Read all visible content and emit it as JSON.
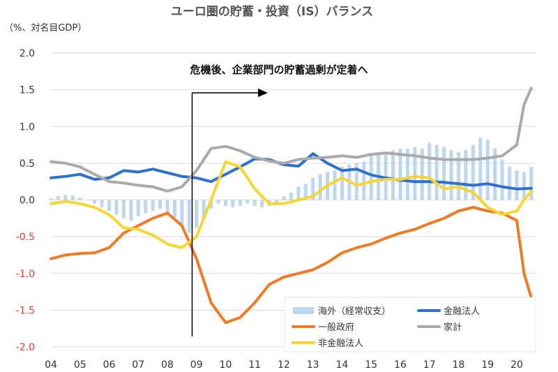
{
  "chart_data": {
    "type": "line",
    "title": "ユーロ圏の貯蓄・投資（IS）バランス",
    "ylabel": "（%、対名目GDP）",
    "ylim": [
      -2.0,
      2.0
    ],
    "yticks": [
      -2.0,
      -1.5,
      -1.0,
      -0.5,
      0.0,
      0.5,
      1.0,
      1.5,
      2.0
    ],
    "ytick_labels": [
      "-2.0",
      "-1.5",
      "-1.0",
      "-0.5",
      "0.0",
      "0.5",
      "1.0",
      "1.5",
      "2.0"
    ],
    "xtick_labels": [
      "04",
      "05",
      "06",
      "07",
      "08",
      "09",
      "10",
      "11",
      "12",
      "13",
      "14",
      "15",
      "16",
      "17",
      "18",
      "19",
      "20"
    ],
    "xlim": [
      2004.0,
      2020.65
    ],
    "grid": true,
    "annotation": {
      "text": "危機後、企業部門の貯蓄過剰が定着へ",
      "event_year": 2008.85
    },
    "legend_position": "bottom-right",
    "series": [
      {
        "name": "海外（経常収支）",
        "kind": "bar",
        "color": "#bdd7ee",
        "x": [
          2004.0,
          2004.25,
          2004.5,
          2004.75,
          2005.0,
          2005.25,
          2005.5,
          2005.75,
          2006.0,
          2006.25,
          2006.5,
          2006.75,
          2007.0,
          2007.25,
          2007.5,
          2007.75,
          2008.0,
          2008.25,
          2008.5,
          2008.75,
          2009.0,
          2009.25,
          2009.5,
          2009.75,
          2010.0,
          2010.25,
          2010.5,
          2010.75,
          2011.0,
          2011.25,
          2011.5,
          2011.75,
          2012.0,
          2012.25,
          2012.5,
          2012.75,
          2013.0,
          2013.25,
          2013.5,
          2013.75,
          2014.0,
          2014.25,
          2014.5,
          2014.75,
          2015.0,
          2015.25,
          2015.5,
          2015.75,
          2016.0,
          2016.25,
          2016.5,
          2016.75,
          2017.0,
          2017.25,
          2017.5,
          2017.75,
          2018.0,
          2018.25,
          2018.5,
          2018.75,
          2019.0,
          2019.25,
          2019.5,
          2019.75,
          2020.0,
          2020.25,
          2020.5
        ],
        "values": [
          0.02,
          0.05,
          0.07,
          0.06,
          0.03,
          0.0,
          -0.05,
          -0.1,
          -0.15,
          -0.2,
          -0.25,
          -0.28,
          -0.22,
          -0.18,
          -0.15,
          -0.12,
          -0.2,
          -0.25,
          -0.35,
          -0.45,
          -0.38,
          -0.25,
          -0.12,
          -0.05,
          -0.08,
          -0.1,
          -0.08,
          -0.05,
          -0.08,
          -0.1,
          -0.08,
          -0.05,
          0.05,
          0.1,
          0.18,
          0.22,
          0.3,
          0.35,
          0.38,
          0.4,
          0.45,
          0.48,
          0.5,
          0.52,
          0.6,
          0.62,
          0.65,
          0.68,
          0.7,
          0.7,
          0.72,
          0.7,
          0.78,
          0.75,
          0.72,
          0.68,
          0.65,
          0.68,
          0.75,
          0.85,
          0.82,
          0.7,
          0.55,
          0.45,
          0.4,
          0.38,
          0.45
        ]
      },
      {
        "name": "金融法人",
        "kind": "line",
        "color": "#2e6fcf",
        "x": [
          2004.0,
          2004.5,
          2005.0,
          2005.5,
          2006.0,
          2006.5,
          2007.0,
          2007.5,
          2008.0,
          2008.5,
          2009.0,
          2009.5,
          2010.0,
          2010.5,
          2011.0,
          2011.5,
          2012.0,
          2012.5,
          2013.0,
          2013.5,
          2014.0,
          2014.5,
          2015.0,
          2015.5,
          2016.0,
          2016.5,
          2017.0,
          2017.5,
          2018.0,
          2018.5,
          2019.0,
          2019.5,
          2020.0,
          2020.5
        ],
        "values": [
          0.3,
          0.32,
          0.35,
          0.28,
          0.3,
          0.4,
          0.38,
          0.42,
          0.37,
          0.32,
          0.3,
          0.25,
          0.35,
          0.45,
          0.56,
          0.55,
          0.48,
          0.46,
          0.63,
          0.5,
          0.4,
          0.42,
          0.34,
          0.3,
          0.27,
          0.25,
          0.25,
          0.24,
          0.22,
          0.2,
          0.22,
          0.18,
          0.15,
          0.16
        ]
      },
      {
        "name": "一般政府",
        "kind": "line",
        "color": "#f07b24",
        "x": [
          2004.0,
          2004.5,
          2005.0,
          2005.5,
          2006.0,
          2006.5,
          2007.0,
          2007.5,
          2008.0,
          2008.5,
          2009.0,
          2009.5,
          2010.0,
          2010.5,
          2011.0,
          2011.5,
          2012.0,
          2012.5,
          2013.0,
          2013.5,
          2014.0,
          2014.5,
          2015.0,
          2015.5,
          2016.0,
          2016.5,
          2017.0,
          2017.5,
          2018.0,
          2018.5,
          2019.0,
          2019.5,
          2020.0,
          2020.25,
          2020.5
        ],
        "values": [
          -0.8,
          -0.75,
          -0.73,
          -0.72,
          -0.65,
          -0.45,
          -0.35,
          -0.25,
          -0.18,
          -0.35,
          -0.8,
          -1.4,
          -1.67,
          -1.6,
          -1.4,
          -1.15,
          -1.05,
          -1.0,
          -0.95,
          -0.85,
          -0.72,
          -0.65,
          -0.6,
          -0.52,
          -0.45,
          -0.4,
          -0.32,
          -0.25,
          -0.15,
          -0.1,
          -0.15,
          -0.18,
          -0.28,
          -1.0,
          -1.33
        ]
      },
      {
        "name": "家計",
        "kind": "line",
        "color": "#aaaaaa",
        "x": [
          2004.0,
          2004.5,
          2005.0,
          2005.5,
          2006.0,
          2006.5,
          2007.0,
          2007.5,
          2008.0,
          2008.5,
          2009.0,
          2009.5,
          2010.0,
          2010.5,
          2011.0,
          2011.5,
          2012.0,
          2012.5,
          2013.0,
          2013.5,
          2014.0,
          2014.5,
          2015.0,
          2015.5,
          2016.0,
          2016.5,
          2017.0,
          2017.5,
          2018.0,
          2018.5,
          2019.0,
          2019.5,
          2020.0,
          2020.25,
          2020.5
        ],
        "values": [
          0.52,
          0.5,
          0.45,
          0.35,
          0.25,
          0.23,
          0.2,
          0.18,
          0.12,
          0.18,
          0.4,
          0.7,
          0.73,
          0.67,
          0.58,
          0.53,
          0.5,
          0.55,
          0.57,
          0.58,
          0.6,
          0.58,
          0.62,
          0.64,
          0.62,
          0.6,
          0.57,
          0.55,
          0.55,
          0.55,
          0.57,
          0.6,
          0.75,
          1.3,
          1.52
        ]
      },
      {
        "name": "非金融法人",
        "kind": "line",
        "color": "#f7d633",
        "x": [
          2004.0,
          2004.5,
          2005.0,
          2005.5,
          2006.0,
          2006.5,
          2007.0,
          2007.5,
          2008.0,
          2008.5,
          2009.0,
          2009.5,
          2010.0,
          2010.5,
          2011.0,
          2011.5,
          2012.0,
          2012.5,
          2013.0,
          2013.5,
          2014.0,
          2014.5,
          2015.0,
          2015.5,
          2016.0,
          2016.5,
          2017.0,
          2017.5,
          2018.0,
          2018.5,
          2019.0,
          2019.5,
          2020.0,
          2020.25,
          2020.5
        ],
        "values": [
          -0.05,
          -0.02,
          -0.05,
          -0.1,
          -0.2,
          -0.38,
          -0.4,
          -0.48,
          -0.6,
          -0.65,
          -0.5,
          0.0,
          0.52,
          0.45,
          0.15,
          -0.05,
          -0.05,
          0.0,
          0.05,
          0.2,
          0.3,
          0.2,
          0.25,
          0.28,
          0.28,
          0.32,
          0.3,
          0.15,
          0.18,
          0.1,
          -0.1,
          -0.2,
          -0.15,
          0.0,
          0.12
        ]
      }
    ]
  }
}
